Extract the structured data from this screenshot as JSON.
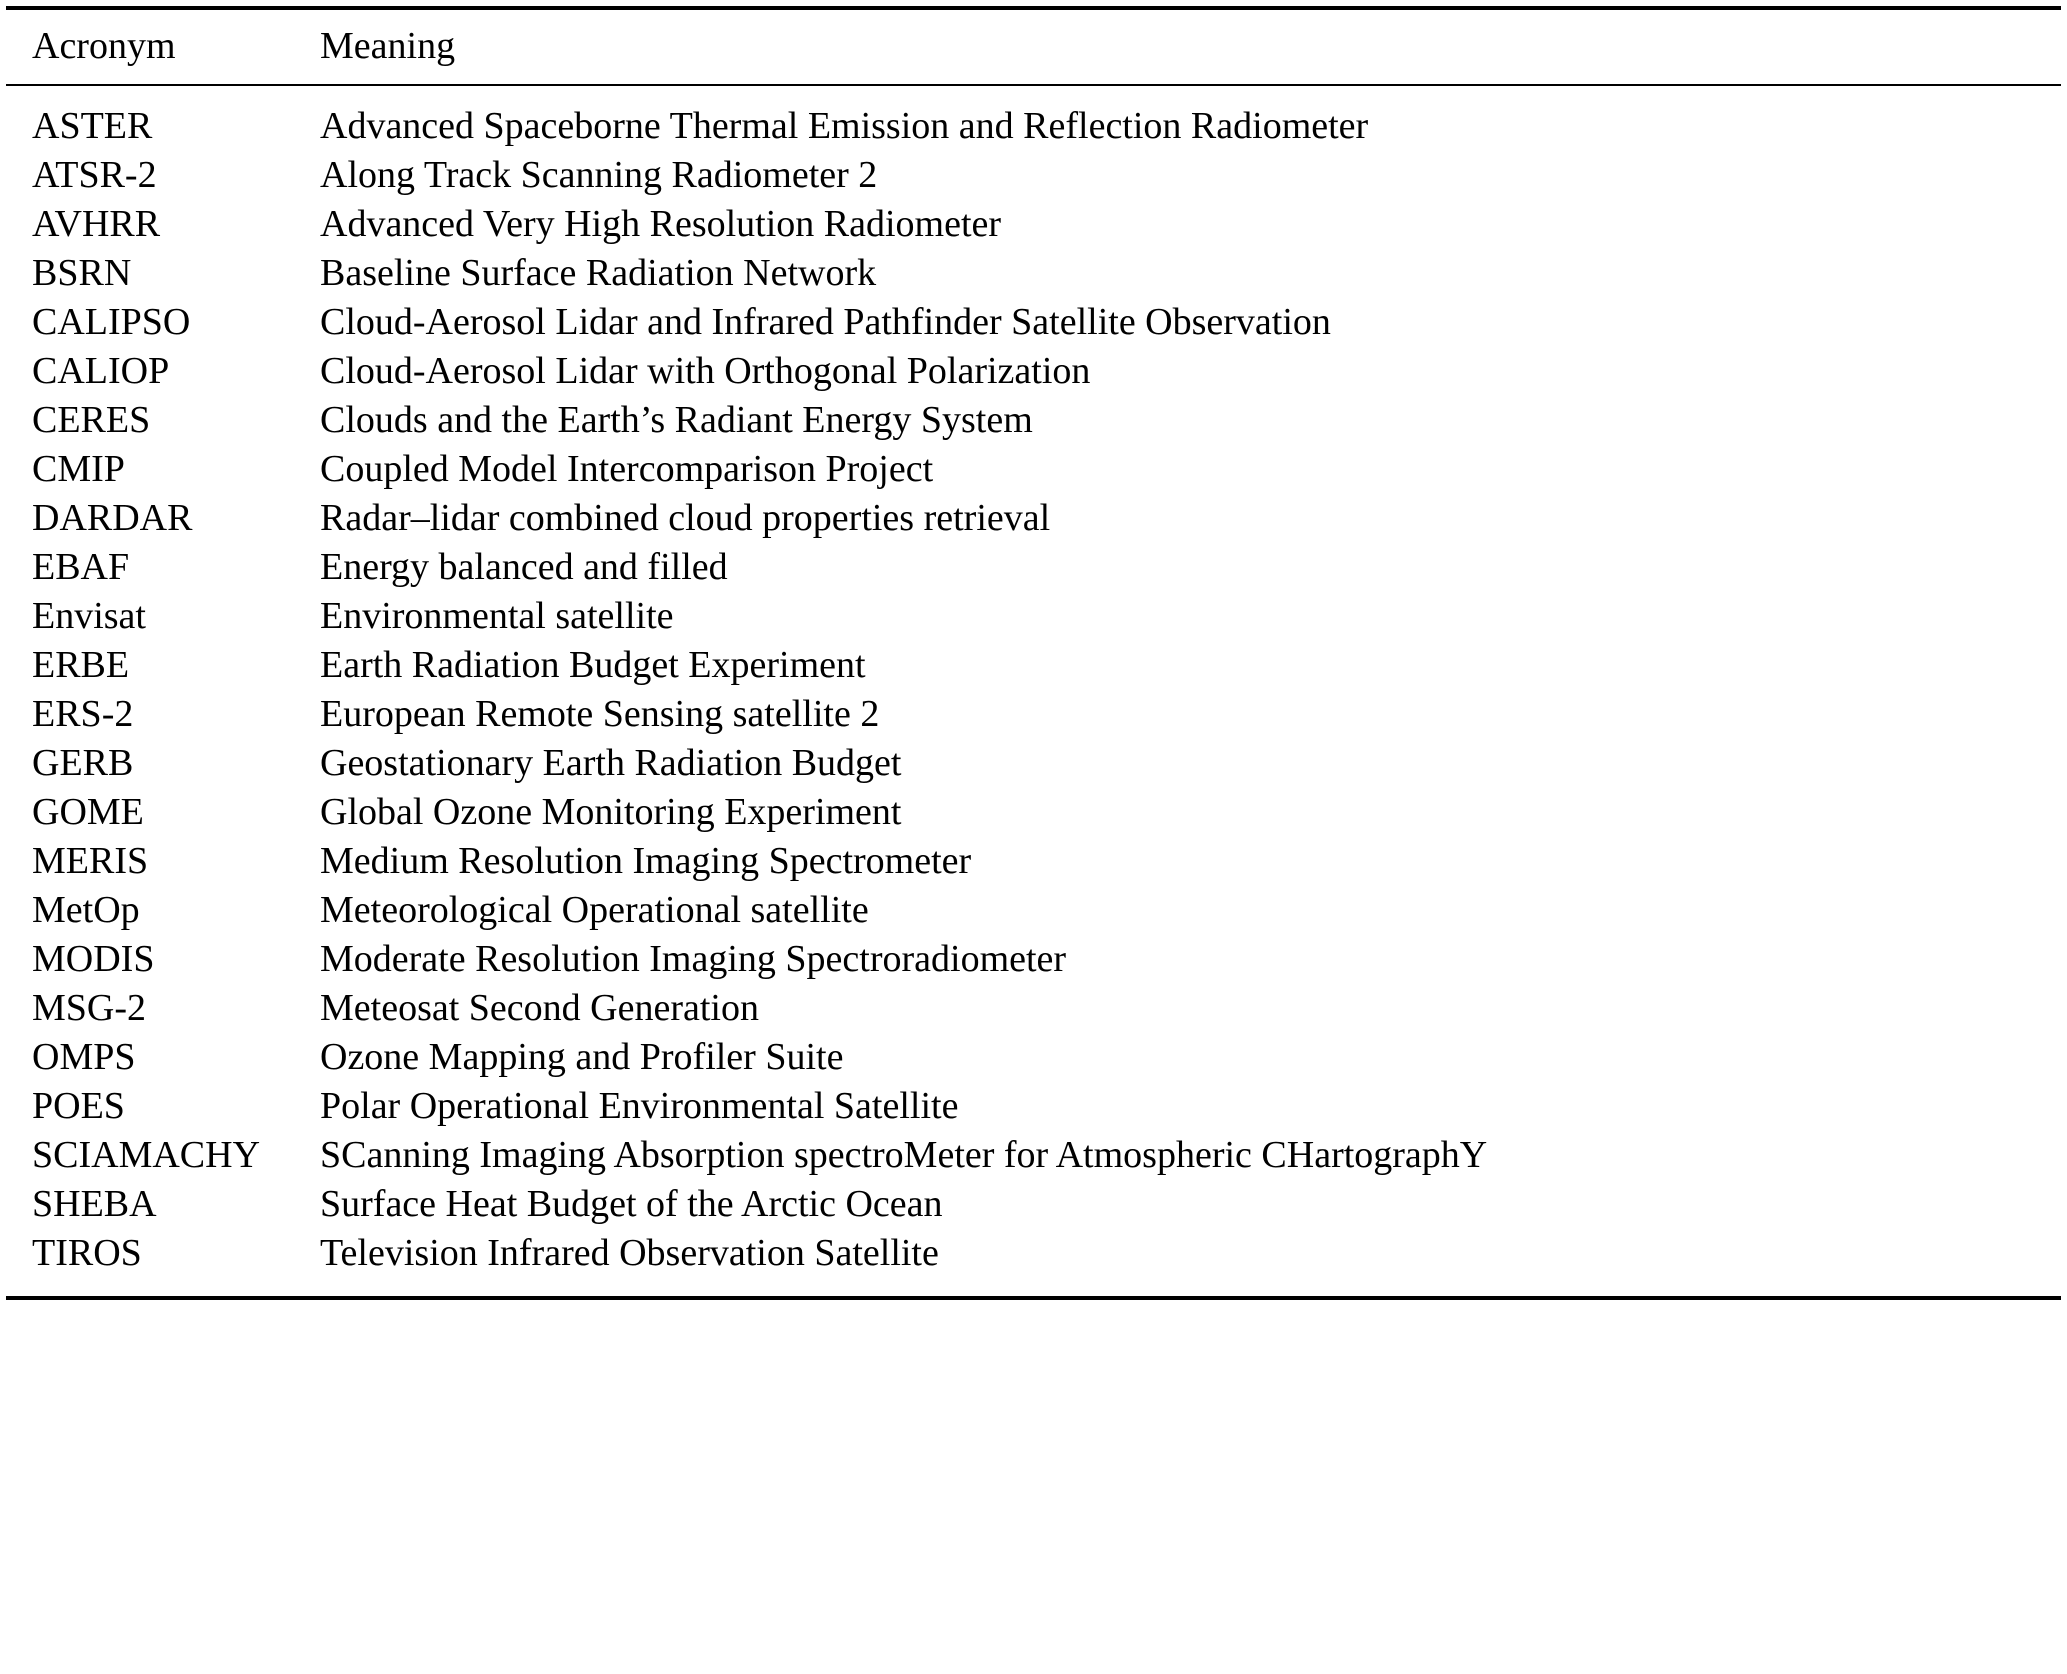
{
  "table": {
    "headers": {
      "acronym": "Acronym",
      "meaning": "Meaning"
    },
    "rows": [
      {
        "acronym": "ASTER",
        "meaning": "Advanced Spaceborne Thermal Emission and Reflection Radiometer"
      },
      {
        "acronym": "ATSR-2",
        "meaning": "Along Track Scanning Radiometer 2"
      },
      {
        "acronym": "AVHRR",
        "meaning": "Advanced Very High Resolution Radiometer"
      },
      {
        "acronym": "BSRN",
        "meaning": "Baseline Surface Radiation Network"
      },
      {
        "acronym": "CALIPSO",
        "meaning": "Cloud-Aerosol Lidar and Infrared Pathfinder Satellite Observation"
      },
      {
        "acronym": "CALIOP",
        "meaning": "Cloud-Aerosol Lidar with Orthogonal Polarization"
      },
      {
        "acronym": "CERES",
        "meaning": "Clouds and the Earth’s Radiant Energy System"
      },
      {
        "acronym": "CMIP",
        "meaning": "Coupled Model Intercomparison Project"
      },
      {
        "acronym": "DARDAR",
        "meaning": "Radar–lidar combined cloud properties retrieval"
      },
      {
        "acronym": "EBAF",
        "meaning": "Energy balanced and filled"
      },
      {
        "acronym": "Envisat",
        "meaning": "Environmental satellite"
      },
      {
        "acronym": "ERBE",
        "meaning": "Earth Radiation Budget Experiment"
      },
      {
        "acronym": "ERS-2",
        "meaning": "European Remote Sensing satellite 2"
      },
      {
        "acronym": "GERB",
        "meaning": "Geostationary Earth Radiation Budget"
      },
      {
        "acronym": "GOME",
        "meaning": "Global Ozone Monitoring Experiment"
      },
      {
        "acronym": "MERIS",
        "meaning": "Medium Resolution Imaging Spectrometer"
      },
      {
        "acronym": "MetOp",
        "meaning": "Meteorological Operational satellite"
      },
      {
        "acronym": "MODIS",
        "meaning": "Moderate Resolution Imaging Spectroradiometer"
      },
      {
        "acronym": "MSG-2",
        "meaning": "Meteosat Second Generation"
      },
      {
        "acronym": "OMPS",
        "meaning": "Ozone Mapping and Profiler Suite"
      },
      {
        "acronym": "POES",
        "meaning": "Polar Operational Environmental Satellite"
      },
      {
        "acronym": "SCIAMACHY",
        "meaning": "SCanning Imaging Absorption spectroMeter for Atmospheric CHartographY"
      },
      {
        "acronym": "SHEBA",
        "meaning": "Surface Heat Budget of the Arctic Ocean"
      },
      {
        "acronym": "TIROS",
        "meaning": "Television Infrared Observation Satellite"
      }
    ]
  }
}
